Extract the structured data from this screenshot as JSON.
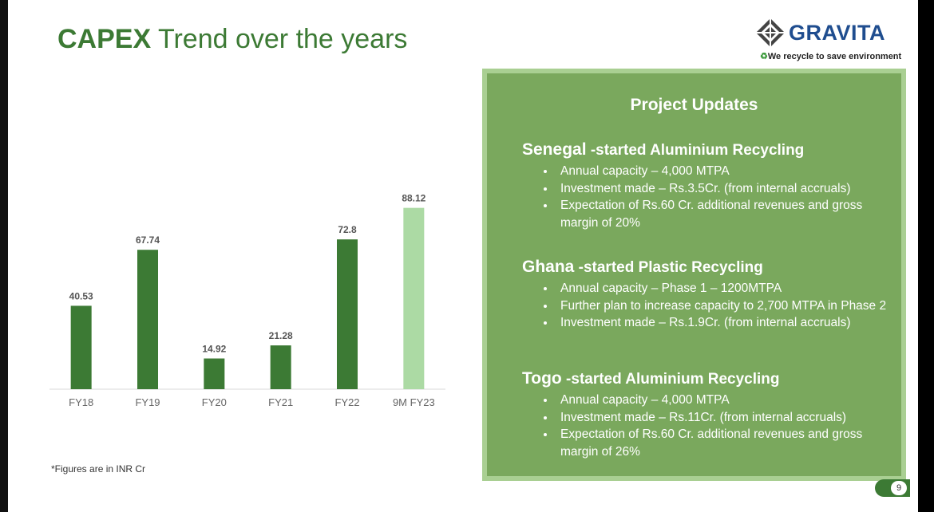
{
  "title": {
    "bold": "CAPEX",
    "rest": " Trend over the years"
  },
  "logo": {
    "name": "GRAVITA",
    "tagline": "We recycle to save environment",
    "icon": "diamond-logo-icon",
    "recycle_icon": "recycle-icon"
  },
  "colors": {
    "bar": "#3c7a34",
    "highlight_bar": "#acdaa4",
    "panel": "#7aa85d",
    "panel_border": "#a9cf92",
    "title": "#3c7a34"
  },
  "chart_data": {
    "type": "bar",
    "title": "",
    "xlabel": "",
    "ylabel": "",
    "categories": [
      "FY18",
      "FY19",
      "FY20",
      "FY21",
      "FY22",
      "9M FY23"
    ],
    "values": [
      40.53,
      67.74,
      14.92,
      21.28,
      72.8,
      88.12
    ],
    "data_labels": [
      "40.53",
      "67.74",
      "14.92",
      "21.28",
      "72.8",
      "88.12"
    ],
    "highlight_index": 5,
    "ylim": [
      0,
      100
    ],
    "grid": false,
    "legend": "none"
  },
  "footnote": "*Figures are in INR Cr",
  "panel": {
    "title": "Project Updates",
    "sections": [
      {
        "country": "Senegal",
        "suffix": " -started Aluminium Recycling",
        "bullets": [
          "Annual capacity – 4,000 MTPA",
          "Investment made – Rs.3.5Cr. (from internal accruals)",
          "Expectation of Rs.60 Cr. additional revenues and gross margin of 20%"
        ]
      },
      {
        "country": "Ghana",
        "suffix": " -started Plastic Recycling",
        "bullets": [
          "Annual capacity – Phase 1 – 1200MTPA",
          "Further plan to increase capacity to 2,700 MTPA in Phase 2",
          "Investment made – Rs.1.9Cr. (from internal accruals)"
        ]
      },
      {
        "country": "Togo",
        "suffix": " -started Aluminium Recycling",
        "bullets": [
          "Annual capacity – 4,000 MTPA",
          "Investment made – Rs.11Cr. (from internal accruals)",
          "Expectation of Rs.60 Cr. additional revenues and gross margin of 26%"
        ]
      }
    ]
  },
  "page_number": "9"
}
